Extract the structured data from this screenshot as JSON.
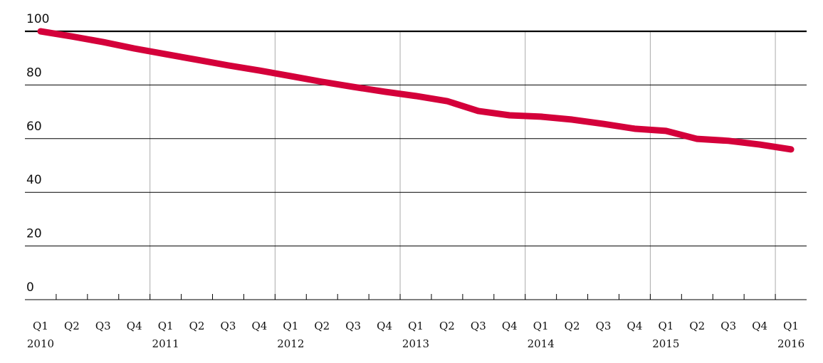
{
  "chart_data": {
    "type": "line",
    "categories": [
      "Q1",
      "Q2",
      "Q3",
      "Q4",
      "Q1",
      "Q2",
      "Q3",
      "Q4",
      "Q1",
      "Q2",
      "Q3",
      "Q4",
      "Q1",
      "Q2",
      "Q3",
      "Q4",
      "Q1",
      "Q2",
      "Q3",
      "Q4",
      "Q1",
      "Q2",
      "Q3",
      "Q4",
      "Q1"
    ],
    "year_labels": [
      "2010",
      null,
      null,
      null,
      "2011",
      null,
      null,
      null,
      "2012",
      null,
      null,
      null,
      "2013",
      null,
      null,
      null,
      "2014",
      null,
      null,
      null,
      "2015",
      null,
      null,
      null,
      "2016"
    ],
    "series": [
      {
        "color": "#d4003a",
        "values": [
          100,
          98.1,
          96.0,
          93.6,
          91.5,
          89.4,
          87.3,
          85.4,
          83.3,
          81.2,
          79.3,
          77.5,
          75.9,
          74.0,
          70.3,
          68.7,
          68.2,
          67.1,
          65.5,
          63.7,
          62.9,
          59.9,
          59.2,
          57.8,
          56.0
        ]
      }
    ],
    "ylim": [
      0,
      100
    ],
    "yticks": [
      0,
      20,
      40,
      60,
      80,
      100
    ],
    "grid": true
  }
}
